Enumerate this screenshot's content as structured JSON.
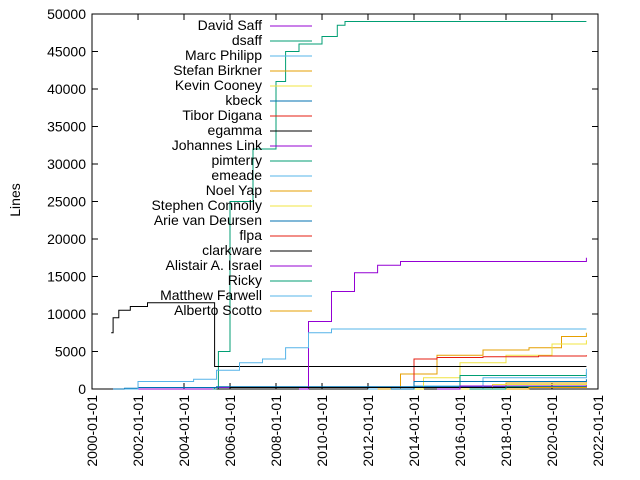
{
  "chart_data": {
    "type": "line",
    "title": "",
    "xlabel": "",
    "ylabel": "Lines",
    "xlim": [
      "2000-01-01",
      "2022-01-01"
    ],
    "ylim": [
      0,
      50000
    ],
    "x_ticks": [
      "2000-01-01",
      "2002-01-01",
      "2004-01-01",
      "2006-01-01",
      "2008-01-01",
      "2010-01-01",
      "2012-01-01",
      "2014-01-01",
      "2016-01-01",
      "2018-01-01",
      "2020-01-01",
      "2022-01-01"
    ],
    "y_ticks": [
      "0",
      "5000",
      "10000",
      "15000",
      "20000",
      "25000",
      "30000",
      "35000",
      "40000",
      "45000",
      "50000"
    ],
    "grid": false,
    "legend_position": "top-left inside",
    "series": [
      {
        "name": "David Saff",
        "color": "#9400d3",
        "x": [
          "2000-12-01",
          "2001-06-01",
          "2005-05-01",
          "2021-07-01"
        ],
        "y": [
          0,
          0,
          200,
          250
        ]
      },
      {
        "name": "dsaff",
        "color": "#009e73",
        "x": [
          "2005-04-01",
          "2005-07-01",
          "2006-01-01",
          "2007-01-01",
          "2008-01-01",
          "2008-06-01",
          "2009-01-01",
          "2010-01-01",
          "2010-09-01",
          "2011-01-01",
          "2021-07-01"
        ],
        "y": [
          0,
          5000,
          25000,
          32000,
          41000,
          45000,
          46000,
          47000,
          48500,
          49000,
          49000
        ]
      },
      {
        "name": "Marc Philipp",
        "color": "#56b4e9",
        "x": [
          "2012-01-01",
          "2013-01-01",
          "2014-01-01",
          "2021-07-01"
        ],
        "y": [
          0,
          200,
          400,
          500
        ]
      },
      {
        "name": "Stefan Birkner",
        "color": "#e69f00",
        "x": [
          "2012-06-01",
          "2013-06-01",
          "2015-01-01",
          "2017-01-01",
          "2019-01-01",
          "2020-06-01",
          "2021-07-01"
        ],
        "y": [
          0,
          2000,
          4500,
          5200,
          5500,
          7000,
          7500
        ]
      },
      {
        "name": "Kevin Cooney",
        "color": "#f0e442",
        "x": [
          "2013-06-01",
          "2014-06-01",
          "2016-01-01",
          "2018-01-01",
          "2020-01-01",
          "2021-07-01"
        ],
        "y": [
          0,
          1500,
          3500,
          4500,
          6000,
          6500
        ]
      },
      {
        "name": "kbeck",
        "color": "#0072b2",
        "x": [
          "2000-12-01",
          "2001-06-01",
          "2002-01-01",
          "2005-06-01",
          "2021-07-01"
        ],
        "y": [
          0,
          100,
          200,
          300,
          300
        ]
      },
      {
        "name": "Tibor Digana",
        "color": "#e51e10",
        "x": [
          "2013-06-01",
          "2014-01-01",
          "2015-01-01",
          "2017-01-01",
          "2019-06-01",
          "2021-07-01"
        ],
        "y": [
          0,
          4000,
          4200,
          4300,
          4400,
          4500
        ]
      },
      {
        "name": "egamma",
        "color": "#000000",
        "x": [
          "2000-11-01",
          "2000-12-01",
          "2001-03-01",
          "2001-09-01",
          "2002-06-01",
          "2005-05-01",
          "2021-07-01"
        ],
        "y": [
          7500,
          9500,
          10500,
          11000,
          11500,
          3000,
          3000
        ]
      },
      {
        "name": "Johannes Link",
        "color": "#9400d3",
        "x": [
          "2009-01-01",
          "2009-06-01",
          "2010-06-01",
          "2011-06-01",
          "2012-06-01",
          "2013-06-01",
          "2021-07-01"
        ],
        "y": [
          0,
          9000,
          13000,
          15500,
          16500,
          17000,
          17500
        ]
      },
      {
        "name": "pimterry",
        "color": "#009e73",
        "x": [
          "2015-01-01",
          "2016-01-01",
          "2021-07-01"
        ],
        "y": [
          0,
          1800,
          2200
        ]
      },
      {
        "name": "emeade",
        "color": "#56b4e9",
        "x": [
          "2015-01-01",
          "2017-01-01",
          "2021-07-01"
        ],
        "y": [
          0,
          1500,
          2700
        ]
      },
      {
        "name": "Noel Yap",
        "color": "#e69f00",
        "x": [
          "2016-01-01",
          "2018-01-01",
          "2021-07-01"
        ],
        "y": [
          0,
          800,
          900
        ]
      },
      {
        "name": "Stephen Connolly",
        "color": "#f0e442",
        "x": [
          "2016-01-01",
          "2017-06-01",
          "2021-07-01"
        ],
        "y": [
          0,
          600,
          700
        ]
      },
      {
        "name": "Arie van Deursen",
        "color": "#0072b2",
        "x": [
          "2013-01-01",
          "2014-01-01",
          "2021-07-01"
        ],
        "y": [
          0,
          1000,
          1300
        ]
      },
      {
        "name": "flpa",
        "color": "#e51e10",
        "x": [
          "2017-01-01",
          "2019-01-01",
          "2021-07-01"
        ],
        "y": [
          0,
          300,
          400
        ]
      },
      {
        "name": "clarkware",
        "color": "#000000",
        "x": [
          "2005-06-01",
          "2006-01-01",
          "2021-07-01"
        ],
        "y": [
          0,
          200,
          200
        ]
      },
      {
        "name": "Alistair A. Israel",
        "color": "#9400d3",
        "x": [
          "2015-01-01",
          "2016-01-01",
          "2021-07-01"
        ],
        "y": [
          0,
          400,
          500
        ]
      },
      {
        "name": "Ricky",
        "color": "#009e73",
        "x": [
          "2016-06-01",
          "2018-01-01",
          "2021-07-01"
        ],
        "y": [
          0,
          300,
          350
        ]
      },
      {
        "name": "Matthew Farwell",
        "color": "#56b4e9",
        "x": [
          "2001-06-01",
          "2002-01-01",
          "2004-06-01",
          "2005-06-01",
          "2006-06-01",
          "2007-06-01",
          "2008-06-01",
          "2009-06-01",
          "2010-06-01",
          "2021-07-01"
        ],
        "y": [
          0,
          1000,
          1300,
          2500,
          3500,
          4000,
          5500,
          7500,
          8000,
          8000
        ]
      },
      {
        "name": "Alberto Scotto",
        "color": "#e69f00",
        "x": [
          "2018-01-01",
          "2019-01-01",
          "2021-07-01"
        ],
        "y": [
          0,
          200,
          300
        ]
      }
    ]
  }
}
